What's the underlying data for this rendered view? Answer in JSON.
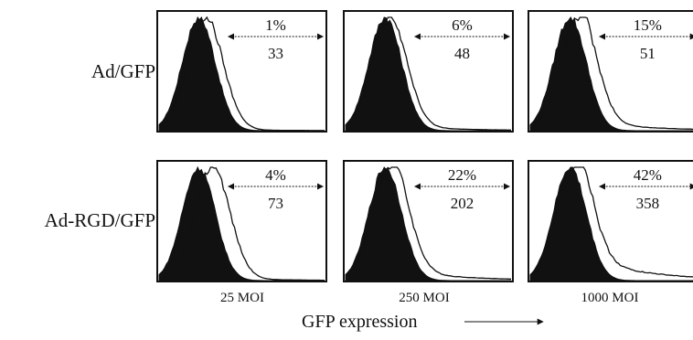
{
  "chart_data": {
    "type": "histogram-grid",
    "xlabel": "GFP expression",
    "rows": [
      "Ad/GFP",
      "Ad-RGD/GFP"
    ],
    "columns": [
      "25 MOI",
      "250 MOI",
      "1000 MOI"
    ],
    "panels": [
      {
        "row": 0,
        "col": 0,
        "percent": "1%",
        "mfi": "33",
        "gate_start": 0.42,
        "gate_end": 0.98,
        "shift": 0.04,
        "tail": 0.02
      },
      {
        "row": 0,
        "col": 1,
        "percent": "6%",
        "mfi": "48",
        "gate_start": 0.42,
        "gate_end": 0.98,
        "shift": 0.02,
        "tail": 0.08
      },
      {
        "row": 0,
        "col": 2,
        "percent": "15%",
        "mfi": "51",
        "gate_start": 0.42,
        "gate_end": 1.0,
        "shift": 0.05,
        "tail": 0.16
      },
      {
        "row": 1,
        "col": 0,
        "percent": "4%",
        "mfi": "73",
        "gate_start": 0.42,
        "gate_end": 0.98,
        "shift": 0.08,
        "tail": 0.04
      },
      {
        "row": 1,
        "col": 1,
        "percent": "22%",
        "mfi": "202",
        "gate_start": 0.42,
        "gate_end": 0.98,
        "shift": 0.03,
        "tail": 0.18
      },
      {
        "row": 1,
        "col": 2,
        "percent": "42%",
        "mfi": "358",
        "gate_start": 0.42,
        "gate_end": 1.0,
        "shift": 0.02,
        "tail": 0.42
      }
    ]
  }
}
